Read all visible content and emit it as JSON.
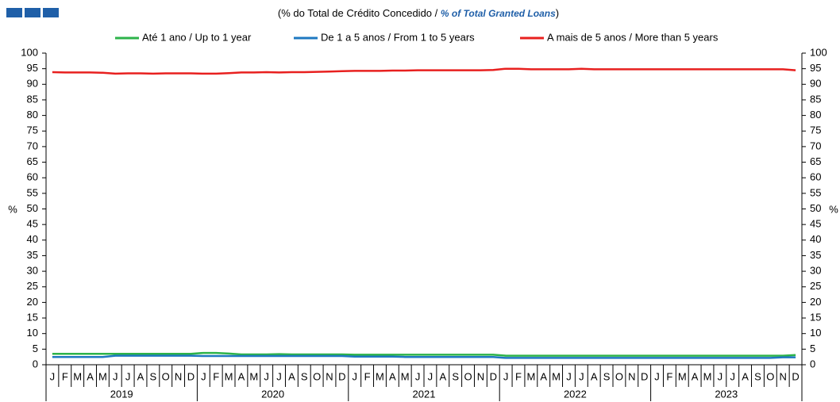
{
  "chart_data": {
    "type": "line",
    "title": "(% do Total  de Crédito Concedido / ",
    "title_en": "% of Total Granted Loans",
    "title_close": ")",
    "ylabel": "%",
    "y2label": "%",
    "categories": [
      "J",
      "F",
      "M",
      "A",
      "M",
      "J",
      "J",
      "A",
      "S",
      "O",
      "N",
      "D",
      "J",
      "F",
      "M",
      "A",
      "M",
      "J",
      "J",
      "A",
      "S",
      "O",
      "N",
      "D",
      "J",
      "F",
      "M",
      "A",
      "M",
      "J",
      "J",
      "A",
      "S",
      "O",
      "N",
      "D",
      "J",
      "F",
      "M",
      "A",
      "M",
      "J",
      "J",
      "A",
      "S",
      "O",
      "N",
      "D",
      "J",
      "F",
      "M",
      "A",
      "M",
      "J",
      "J",
      "A",
      "S",
      "O",
      "N",
      "D"
    ],
    "years": [
      "2019",
      "2020",
      "2021",
      "2022",
      "2023"
    ],
    "ylim": [
      0,
      100
    ],
    "yticks": [
      0,
      5,
      10,
      15,
      20,
      25,
      30,
      35,
      40,
      45,
      50,
      55,
      60,
      65,
      70,
      75,
      80,
      85,
      90,
      95,
      100
    ],
    "y2lim": [
      0,
      100
    ],
    "y2ticks": [
      0,
      5,
      10,
      15,
      20,
      25,
      30,
      35,
      40,
      45,
      50,
      55,
      60,
      65,
      70,
      75,
      80,
      85,
      90,
      95,
      100
    ],
    "legend": "top",
    "series": [
      {
        "name": "Até 1 ano / Up to 1 year",
        "color": "#2db34a",
        "values": [
          3.5,
          3.5,
          3.5,
          3.5,
          3.5,
          3.5,
          3.5,
          3.5,
          3.5,
          3.5,
          3.5,
          3.5,
          3.8,
          3.8,
          3.6,
          3.3,
          3.3,
          3.3,
          3.4,
          3.3,
          3.3,
          3.3,
          3.3,
          3.3,
          3.2,
          3.2,
          3.2,
          3.2,
          3.2,
          3.2,
          3.2,
          3.2,
          3.2,
          3.2,
          3.2,
          3.2,
          2.9,
          2.9,
          2.9,
          2.9,
          2.9,
          2.9,
          2.9,
          2.9,
          2.9,
          2.9,
          2.9,
          2.9,
          2.9,
          2.9,
          2.9,
          2.9,
          2.9,
          2.9,
          2.9,
          2.9,
          2.9,
          2.9,
          2.9,
          3.1
        ]
      },
      {
        "name": "De 1 a 5 anos / From 1 to 5 years",
        "color": "#1f78c1",
        "values": [
          2.5,
          2.5,
          2.5,
          2.5,
          2.5,
          2.9,
          2.9,
          2.9,
          2.9,
          2.9,
          2.9,
          2.9,
          2.8,
          2.8,
          2.8,
          2.8,
          2.8,
          2.8,
          2.8,
          2.8,
          2.8,
          2.8,
          2.8,
          2.8,
          2.6,
          2.6,
          2.6,
          2.6,
          2.5,
          2.5,
          2.5,
          2.5,
          2.5,
          2.5,
          2.5,
          2.5,
          2.2,
          2.2,
          2.2,
          2.2,
          2.2,
          2.2,
          2.2,
          2.2,
          2.2,
          2.2,
          2.2,
          2.2,
          2.2,
          2.2,
          2.2,
          2.2,
          2.2,
          2.2,
          2.2,
          2.2,
          2.2,
          2.2,
          2.4,
          2.4
        ]
      },
      {
        "name": "A mais de 5 anos / More than 5 years",
        "color": "#e8201f",
        "values": [
          93.9,
          93.8,
          93.8,
          93.8,
          93.7,
          93.4,
          93.5,
          93.5,
          93.4,
          93.5,
          93.5,
          93.5,
          93.4,
          93.4,
          93.6,
          93.8,
          93.8,
          93.9,
          93.8,
          93.9,
          93.9,
          94.0,
          94.1,
          94.2,
          94.3,
          94.3,
          94.3,
          94.4,
          94.4,
          94.5,
          94.5,
          94.5,
          94.5,
          94.5,
          94.5,
          94.6,
          95.0,
          95.0,
          94.8,
          94.8,
          94.8,
          94.8,
          95.0,
          94.8,
          94.8,
          94.8,
          94.8,
          94.8,
          94.8,
          94.8,
          94.8,
          94.8,
          94.8,
          94.8,
          94.8,
          94.8,
          94.8,
          94.8,
          94.8,
          94.5
        ]
      }
    ]
  }
}
